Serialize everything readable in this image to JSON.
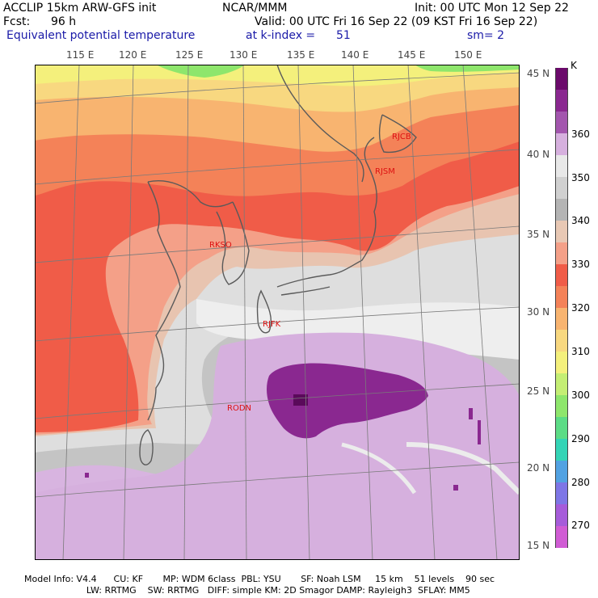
{
  "header": {
    "model": "ACCLIP 15km ARW-GFS init",
    "center": "NCAR/MMM",
    "init": "Init: 00 UTC Mon 12 Sep 22",
    "fcst_label": "Fcst:",
    "fcst_value": "96 h",
    "valid": "Valid: 00 UTC Fri 16 Sep 22 (09 KST Fri 16 Sep 22)",
    "field": "Equivalent potential temperature",
    "level": "at k-index =",
    "level_value": "51",
    "smooth": "sm= 2"
  },
  "map": {
    "lon_labels": [
      "115 E",
      "120 E",
      "125 E",
      "130 E",
      "135 E",
      "140 E",
      "145 E",
      "150 E"
    ],
    "lat_labels": [
      "45 N",
      "40 N",
      "35 N",
      "30 N",
      "25 N",
      "20 N",
      "15 N"
    ],
    "stations": [
      "RJCB",
      "RJSM",
      "RKSO",
      "RJFK",
      "RODN"
    ]
  },
  "colorbar": {
    "unit": "K",
    "labels": [
      "360",
      "350",
      "340",
      "330",
      "320",
      "310",
      "300",
      "290",
      "280",
      "270"
    ],
    "colors": [
      "#6b0a6b",
      "#8a2890",
      "#a356ae",
      "#d6b0de",
      "#e8e8e8",
      "#d0d0d0",
      "#b4b4b4",
      "#e8c8b4",
      "#f4a088",
      "#f05c48",
      "#f48258",
      "#f8b470",
      "#f8d880",
      "#f4f07c",
      "#c4ee74",
      "#8ee66c",
      "#5cdc86",
      "#34d4b6",
      "#52a2e2",
      "#7e76e6",
      "#a65cda",
      "#d05cd4"
    ]
  },
  "footer": {
    "line1": "Model Info: V4.4      CU: KF       MP: WDM 6class  PBL: YSU       SF: Noah LSM     15 km    51 levels    90 sec",
    "line2": "                      LW: RRTMG    SW: RRTMG   DIFF: simple KM: 2D Smagor DAMP: Rayleigh3  SFLAY: MM5"
  }
}
